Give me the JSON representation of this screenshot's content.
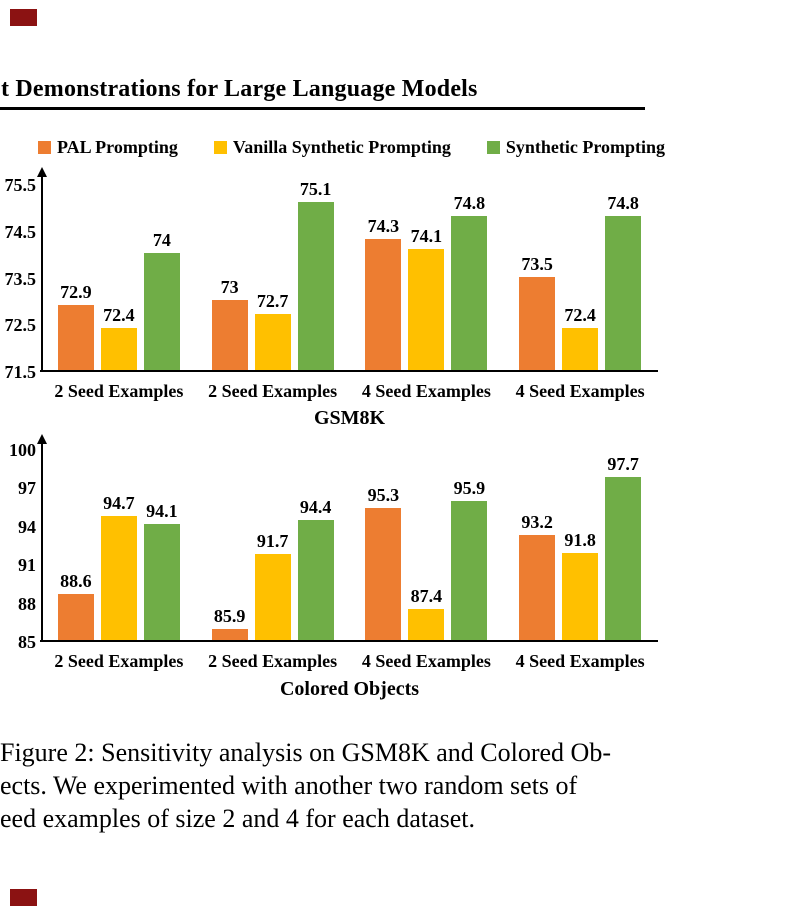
{
  "page": {
    "marker_color": "#8b1212"
  },
  "header": {
    "running_title": "t Demonstrations for Large Language Models"
  },
  "legend": {
    "items": [
      {
        "label": "PAL Prompting",
        "color": "#ED7D31"
      },
      {
        "label": "Vanilla Synthetic Prompting",
        "color": "#FFC000"
      },
      {
        "label": "Synthetic Prompting",
        "color": "#70AD47"
      }
    ]
  },
  "chart_data": [
    {
      "type": "bar",
      "title": "GSM8K",
      "categories": [
        "2 Seed Examples",
        "2 Seed Examples",
        "4 Seed Examples",
        "4 Seed Examples"
      ],
      "series": [
        {
          "name": "PAL Prompting",
          "color": "#ED7D31",
          "values": [
            72.9,
            73,
            74.3,
            73.5
          ]
        },
        {
          "name": "Vanilla Synthetic Prompting",
          "color": "#FFC000",
          "values": [
            72.4,
            72.7,
            74.1,
            72.4
          ]
        },
        {
          "name": "Synthetic Prompting",
          "color": "#70AD47",
          "values": [
            74,
            75.1,
            74.8,
            74.8
          ]
        }
      ],
      "ylim": [
        71.5,
        75.5
      ],
      "yticks": [
        71.5,
        72.5,
        73.5,
        74.5,
        75.5
      ],
      "grid": false,
      "legend_position": "top",
      "value_labels": true
    },
    {
      "type": "bar",
      "title": "Colored Objects",
      "categories": [
        "2 Seed Examples",
        "2 Seed Examples",
        "4 Seed Examples",
        "4 Seed Examples"
      ],
      "series": [
        {
          "name": "PAL Prompting",
          "color": "#ED7D31",
          "values": [
            88.6,
            85.9,
            95.3,
            93.2
          ]
        },
        {
          "name": "Vanilla Synthetic Prompting",
          "color": "#FFC000",
          "values": [
            94.7,
            91.7,
            87.4,
            91.8
          ]
        },
        {
          "name": "Synthetic Prompting",
          "color": "#70AD47",
          "values": [
            94.1,
            94.4,
            95.9,
            97.7
          ]
        }
      ],
      "ylim": [
        85,
        100
      ],
      "yticks": [
        85,
        88,
        91,
        94,
        97,
        100
      ],
      "grid": false,
      "legend_position": "none",
      "value_labels": true
    }
  ],
  "caption": {
    "lines": [
      "Figure 2: Sensitivity analysis on GSM8K and Colored Ob-",
      "ects. We experimented with another two random sets of",
      "eed examples of size 2 and 4 for each dataset."
    ]
  }
}
